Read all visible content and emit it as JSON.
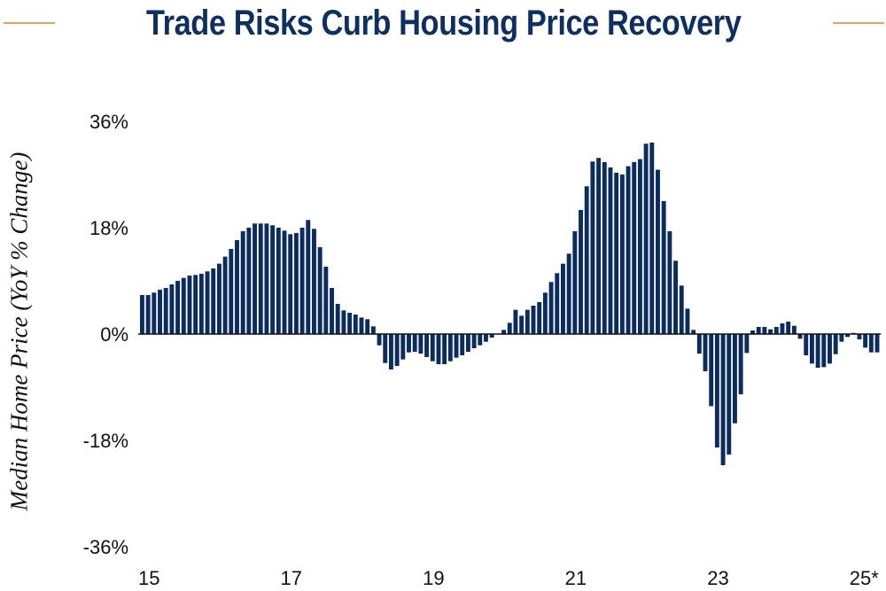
{
  "chart_data": {
    "type": "bar",
    "title": "Trade Risks Curb Housing Price Recovery",
    "xlabel": "",
    "ylabel": "Median Home Price (YoY % Change)",
    "ylim": [
      -36,
      36
    ],
    "yticks": [
      {
        "value": 36,
        "label": "36%"
      },
      {
        "value": 18,
        "label": "18%"
      },
      {
        "value": 0,
        "label": "0%"
      },
      {
        "value": -18,
        "label": "-18%"
      },
      {
        "value": -36,
        "label": "-36%"
      }
    ],
    "xticks": [
      {
        "index": 0,
        "label": "15"
      },
      {
        "index": 24,
        "label": "17"
      },
      {
        "index": 48,
        "label": "19"
      },
      {
        "index": 72,
        "label": "21"
      },
      {
        "index": 96,
        "label": "23"
      },
      {
        "index": 120,
        "label": "25*"
      }
    ],
    "grid": false,
    "legend": "none",
    "series": [
      {
        "name": "Median Home Price YoY % Change",
        "color": "#0b2c5c",
        "frequency": "monthly",
        "start": "2015-01",
        "values": [
          6.6,
          6.6,
          7.0,
          7.5,
          7.8,
          8.4,
          9.0,
          9.5,
          9.9,
          10.0,
          10.2,
          10.6,
          11.1,
          11.9,
          13.1,
          14.4,
          15.9,
          17.4,
          18.0,
          18.7,
          18.7,
          18.7,
          18.4,
          18.0,
          17.5,
          16.9,
          17.1,
          18.0,
          19.3,
          17.8,
          14.7,
          11.4,
          7.8,
          5.1,
          4.0,
          3.6,
          3.3,
          2.8,
          2.5,
          1.3,
          -1.9,
          -4.9,
          -6.0,
          -5.4,
          -4.3,
          -3.1,
          -3.0,
          -3.3,
          -3.9,
          -4.6,
          -5.1,
          -5.1,
          -4.6,
          -4.0,
          -3.6,
          -3.0,
          -2.4,
          -1.9,
          -1.3,
          -0.6,
          0.0,
          0.7,
          1.9,
          4.1,
          3.1,
          4.1,
          4.8,
          5.4,
          7.0,
          8.8,
          10.3,
          11.9,
          13.6,
          17.4,
          21.0,
          25.0,
          29.2,
          29.8,
          29.1,
          28.2,
          27.3,
          27.0,
          28.4,
          29.1,
          29.6,
          32.2,
          32.4,
          27.8,
          22.5,
          17.4,
          12.4,
          8.2,
          4.3,
          0.7,
          -3.3,
          -6.3,
          -12.2,
          -19.2,
          -22.2,
          -20.4,
          -15.1,
          -10.2,
          -3.2,
          0.6,
          1.2,
          1.2,
          0.8,
          1.2,
          1.8,
          2.1,
          1.4,
          -0.8,
          -3.6,
          -5.0,
          -5.7,
          -5.6,
          -5.0,
          -3.4,
          -1.3,
          -0.5,
          0.2,
          -0.9,
          -2.3,
          -3.1,
          -3.1
        ]
      }
    ]
  }
}
